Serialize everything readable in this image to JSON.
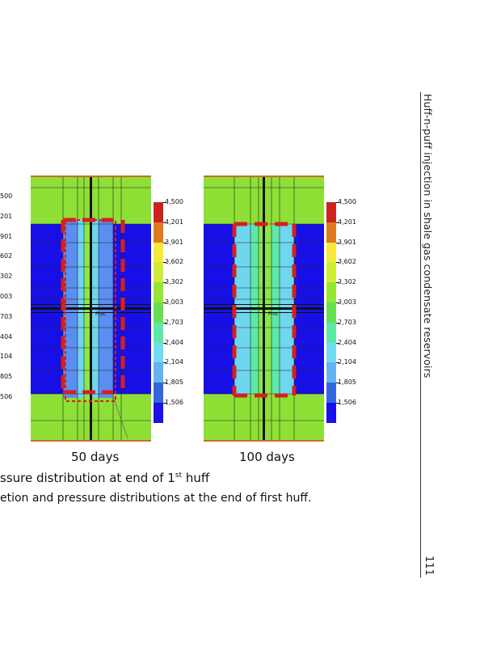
{
  "page": {
    "running_header": "Huff-n-puff injection in shale gas condensate reservoirs",
    "page_number": "111"
  },
  "figure": {
    "left_legend_cut_values": [
      "500",
      "201",
      "901",
      "602",
      "302",
      "003",
      "703",
      "404",
      "104",
      "805",
      "506"
    ],
    "panels": [
      {
        "label": "50 days",
        "well_label": "Proc"
      },
      {
        "label": "100 days",
        "well_label": "Proc"
      }
    ],
    "colorbar": {
      "values": [
        "4,500",
        "4,201",
        "3,901",
        "3,602",
        "3,302",
        "3,003",
        "2,703",
        "2,404",
        "2,104",
        "1,805",
        "1,506"
      ],
      "colors": [
        "#cc2222",
        "#e07a1e",
        "#f5e93a",
        "#cdee34",
        "#96e633",
        "#66e052",
        "#5ee8a8",
        "#6fdcf0",
        "#66b3f2",
        "#3366dd",
        "#1a10e8"
      ]
    },
    "subcaption_pre": "ssure distribution at end of 1",
    "subcaption_sup": "st",
    "subcaption_post": " huff",
    "caption": "etion and pressure distributions at the end of first huff."
  }
}
